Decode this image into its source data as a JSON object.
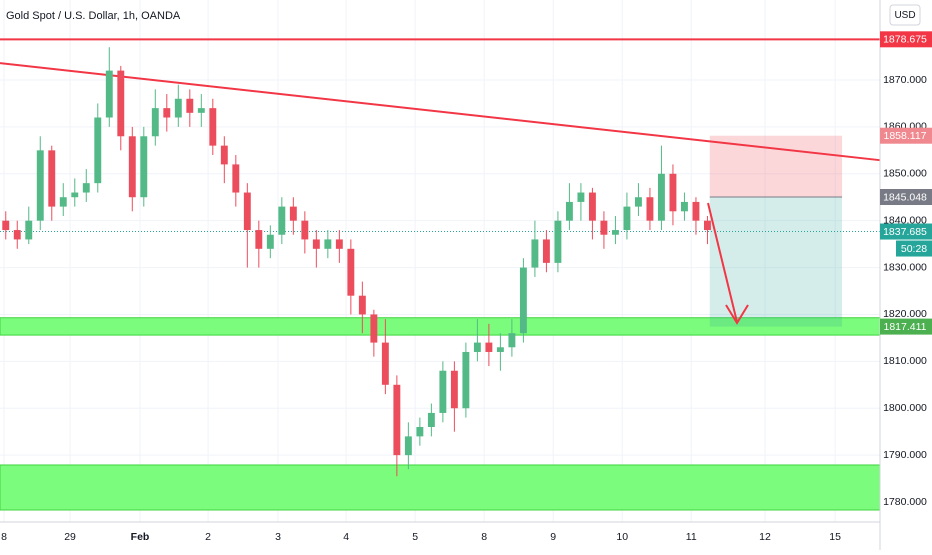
{
  "chart_data": {
    "type": "candlestick",
    "title": "Gold Spot / U.S. Dollar, 1h, OANDA",
    "currency": "USD",
    "open": [
      1840,
      1838,
      1836,
      1840,
      1855,
      1843,
      1845,
      1846,
      1848,
      1862,
      1872,
      1858,
      1845,
      1858,
      1864,
      1862,
      1866,
      1863,
      1864,
      1856,
      1852,
      1846,
      1838,
      1834,
      1837,
      1843,
      1840,
      1836,
      1834,
      1836,
      1834,
      1824,
      1820,
      1814,
      1805,
      1790,
      1794,
      1796,
      1799,
      1808,
      1800,
      1812,
      1814,
      1812,
      1813,
      1816,
      1830,
      1836,
      1831,
      1840,
      1844,
      1846,
      1840,
      1837,
      1838,
      1843,
      1845,
      1840,
      1850,
      1842,
      1844,
      1840
    ],
    "high": [
      1842,
      1840,
      1843,
      1858,
      1856,
      1848,
      1849,
      1851,
      1865,
      1877,
      1873,
      1860,
      1860,
      1868,
      1867,
      1869,
      1868,
      1867,
      1866,
      1858,
      1854,
      1848,
      1840,
      1839,
      1845,
      1845,
      1842,
      1838,
      1838,
      1838,
      1836,
      1827,
      1821,
      1819,
      1807,
      1797,
      1798,
      1801,
      1810,
      1810,
      1814,
      1819,
      1818,
      1816,
      1819,
      1832,
      1840,
      1838,
      1842,
      1848,
      1848,
      1847,
      1842,
      1841,
      1846,
      1848,
      1847,
      1856,
      1852,
      1846,
      1845,
      1841
    ],
    "low": [
      1836,
      1834,
      1835,
      1838,
      1840,
      1841,
      1843,
      1844,
      1846,
      1860,
      1855,
      1842,
      1843,
      1856,
      1859,
      1860,
      1860,
      1860,
      1854,
      1848,
      1843,
      1830,
      1830,
      1832,
      1835,
      1837,
      1833,
      1830,
      1832,
      1831,
      1820,
      1816,
      1811,
      1803,
      1785.5,
      1787,
      1792,
      1794,
      1797,
      1795,
      1798,
      1810,
      1809,
      1808,
      1811,
      1814,
      1828,
      1829,
      1829,
      1838,
      1840,
      1836,
      1834,
      1835,
      1836,
      1841,
      1838,
      1838,
      1839,
      1840,
      1837,
      1835
    ],
    "close": [
      1838,
      1836,
      1840,
      1855,
      1843,
      1845,
      1846,
      1848,
      1862,
      1872,
      1858,
      1845,
      1858,
      1864,
      1862,
      1866,
      1863,
      1864,
      1856,
      1852,
      1846,
      1838,
      1834,
      1837,
      1843,
      1840,
      1836,
      1834,
      1836,
      1834,
      1824,
      1820,
      1814,
      1805,
      1790,
      1794,
      1796,
      1799,
      1808,
      1800,
      1812,
      1814,
      1812,
      1813,
      1816,
      1830,
      1836,
      1831,
      1840,
      1844,
      1846,
      1840,
      1837,
      1838,
      1843,
      1845,
      1840,
      1850,
      1842,
      1844,
      1840,
      1838
    ],
    "up_color": "#53b987",
    "down_color": "#eb4d5c",
    "xlim": [
      0,
      76.5
    ],
    "xticks": [
      {
        "value": 0.35,
        "label": "8"
      },
      {
        "value": 6.09,
        "label": "29"
      },
      {
        "value": 12.17,
        "label": "Feb"
      },
      {
        "value": 18.09,
        "label": "2"
      },
      {
        "value": 24.17,
        "label": "3"
      },
      {
        "value": 30.09,
        "label": "4"
      },
      {
        "value": 36.09,
        "label": "5"
      },
      {
        "value": 42.09,
        "label": "8"
      },
      {
        "value": 48.09,
        "label": "9"
      },
      {
        "value": 54.09,
        "label": "10"
      },
      {
        "value": 60.09,
        "label": "11"
      },
      {
        "value": 66.5,
        "label": "12"
      },
      {
        "value": 72.6,
        "label": "15"
      }
    ],
    "ylim": [
      1775.74,
      1887.06
    ],
    "yticks": [
      {
        "value": 1780,
        "label": "1780.000"
      },
      {
        "value": 1790,
        "label": "1790.000"
      },
      {
        "value": 1800,
        "label": "1800.000"
      },
      {
        "value": 1810,
        "label": "1810.000"
      },
      {
        "value": 1820,
        "label": "1820.000"
      },
      {
        "value": 1830,
        "label": "1830.000"
      },
      {
        "value": 1840,
        "label": "1840.000"
      },
      {
        "value": 1850,
        "label": "1850.000"
      },
      {
        "value": 1860,
        "label": "1860.000"
      },
      {
        "value": 1870,
        "label": "1870.000"
      }
    ],
    "grid": true,
    "resistance": {
      "value": 1878.675,
      "color": "#f23645"
    },
    "trendline": {
      "start": 1873.6,
      "end": 1852.9,
      "color": "#f23645"
    },
    "zones": [
      {
        "low": 1815.6,
        "high": 1819.3,
        "color": "#7cfc7c"
      },
      {
        "low": 1778.3,
        "high": 1787.9,
        "color": "#7cfc7c"
      }
    ],
    "position": {
      "start": 61.7,
      "end": 73.2,
      "entry": 1845.048,
      "stop": 1858.117,
      "target": 1817.411
    },
    "last_price": {
      "value": 1837.685,
      "countdown": "50:28",
      "color": "#26a69a"
    },
    "price_labels": [
      {
        "value": 1878.675,
        "color": "#f23645"
      },
      {
        "value": 1858.117,
        "color": "#f0898f"
      },
      {
        "value": 1845.048,
        "color": "#787b86"
      },
      {
        "value": 1837.685,
        "color": "#26a69a"
      },
      {
        "value": 1817.411,
        "color": "#4caf50"
      }
    ]
  }
}
